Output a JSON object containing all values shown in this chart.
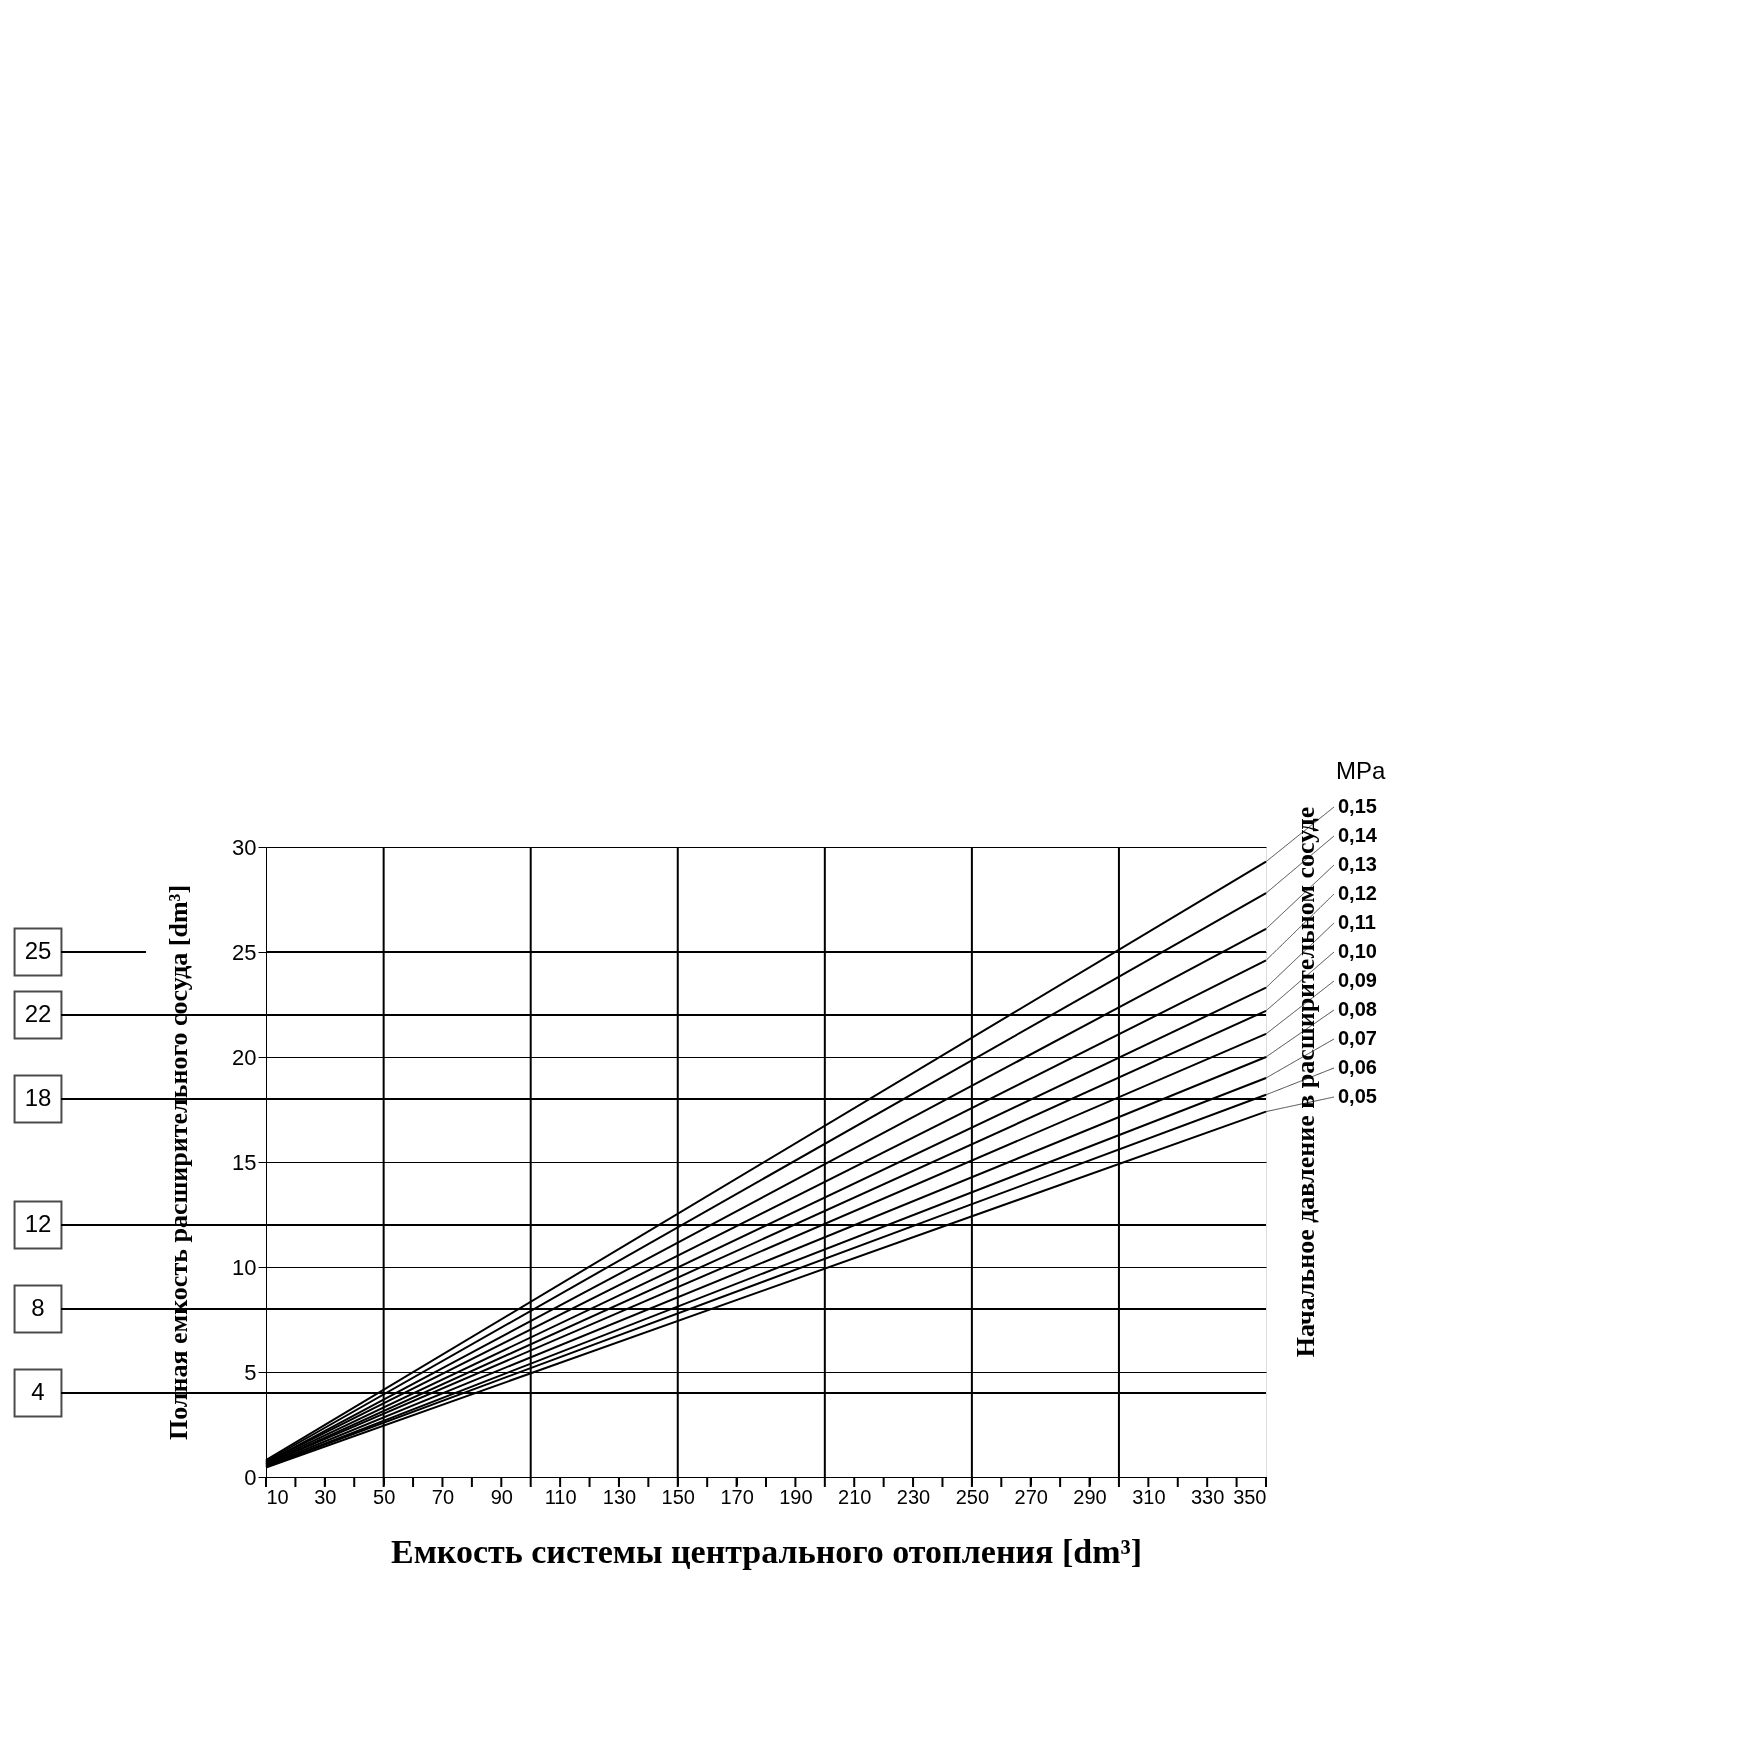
{
  "chart_data": {
    "type": "line",
    "xlabel": "Емкость системы центрального отопления [dm³]",
    "ylabel": "Полная емкость расширительного сосуда [dm³]",
    "legend_title": "MPa",
    "annotations": [
      "Начальное давление в расширительном сосуде"
    ],
    "x": [
      10,
      350
    ],
    "series": [
      {
        "name": "0,15",
        "color": "#000000",
        "values": [
          0.8,
          29.3
        ]
      },
      {
        "name": "0,14",
        "color": "#000000",
        "values": [
          0.75,
          27.8
        ]
      },
      {
        "name": "0,13",
        "color": "#000000",
        "values": [
          0.7,
          26.1
        ]
      },
      {
        "name": "0,12",
        "color": "#000000",
        "values": [
          0.7,
          24.6
        ]
      },
      {
        "name": "0,11",
        "color": "#000000",
        "values": [
          0.65,
          23.3
        ]
      },
      {
        "name": "0,10",
        "color": "#000000",
        "values": [
          0.6,
          22.2
        ]
      },
      {
        "name": "0,09",
        "color": "#000000",
        "values": [
          0.6,
          21.1
        ]
      },
      {
        "name": "0,08",
        "color": "#000000",
        "values": [
          0.55,
          20.0
        ]
      },
      {
        "name": "0,07",
        "color": "#000000",
        "values": [
          0.5,
          19.0
        ]
      },
      {
        "name": "0,06",
        "color": "#000000",
        "values": [
          0.5,
          18.2
        ]
      },
      {
        "name": "0,05",
        "color": "#000000",
        "values": [
          0.45,
          17.4
        ]
      }
    ],
    "xlim": [
      10,
      350
    ],
    "xticks": [
      10,
      {
        "value": 20,
        "label": null
      },
      30,
      {
        "value": 40,
        "label": null
      },
      50,
      {
        "value": 60,
        "label": null
      },
      70,
      {
        "value": 80,
        "label": null
      },
      90,
      {
        "value": 100,
        "label": null
      },
      110,
      {
        "value": 120,
        "label": null
      },
      130,
      {
        "value": 140,
        "label": null
      },
      150,
      {
        "value": 160,
        "label": null
      },
      170,
      {
        "value": 180,
        "label": null
      },
      190,
      {
        "value": 200,
        "label": null
      },
      210,
      {
        "value": 220,
        "label": null
      },
      230,
      {
        "value": 240,
        "label": null
      },
      250,
      {
        "value": 260,
        "label": null
      },
      270,
      {
        "value": 280,
        "label": null
      },
      290,
      {
        "value": 300,
        "label": null
      },
      310,
      {
        "value": 320,
        "label": null
      },
      330,
      {
        "value": 340,
        "label": null
      },
      350
    ],
    "ylim": [
      0,
      30
    ],
    "yticks": [
      0,
      5,
      10,
      15,
      20,
      25,
      30
    ],
    "grid": "y",
    "legend": false,
    "marker": "none",
    "line_style": "solid",
    "ref_lines": [
      {
        "axis": "x",
        "value": 50,
        "label": null
      },
      {
        "axis": "x",
        "value": 100,
        "label": null
      },
      {
        "axis": "x",
        "value": 150,
        "label": null
      },
      {
        "axis": "x",
        "value": 200,
        "label": null
      },
      {
        "axis": "x",
        "value": 250,
        "label": null
      },
      {
        "axis": "x",
        "value": 300,
        "label": null
      },
      {
        "axis": "y",
        "value": 25,
        "label": "25"
      },
      {
        "axis": "y",
        "value": 22,
        "label": "22"
      },
      {
        "axis": "y",
        "value": 18,
        "label": "18"
      },
      {
        "axis": "y",
        "value": 12,
        "label": "12"
      },
      {
        "axis": "y",
        "value": 8,
        "label": "8"
      },
      {
        "axis": "y",
        "value": 4,
        "label": "4"
      }
    ]
  }
}
